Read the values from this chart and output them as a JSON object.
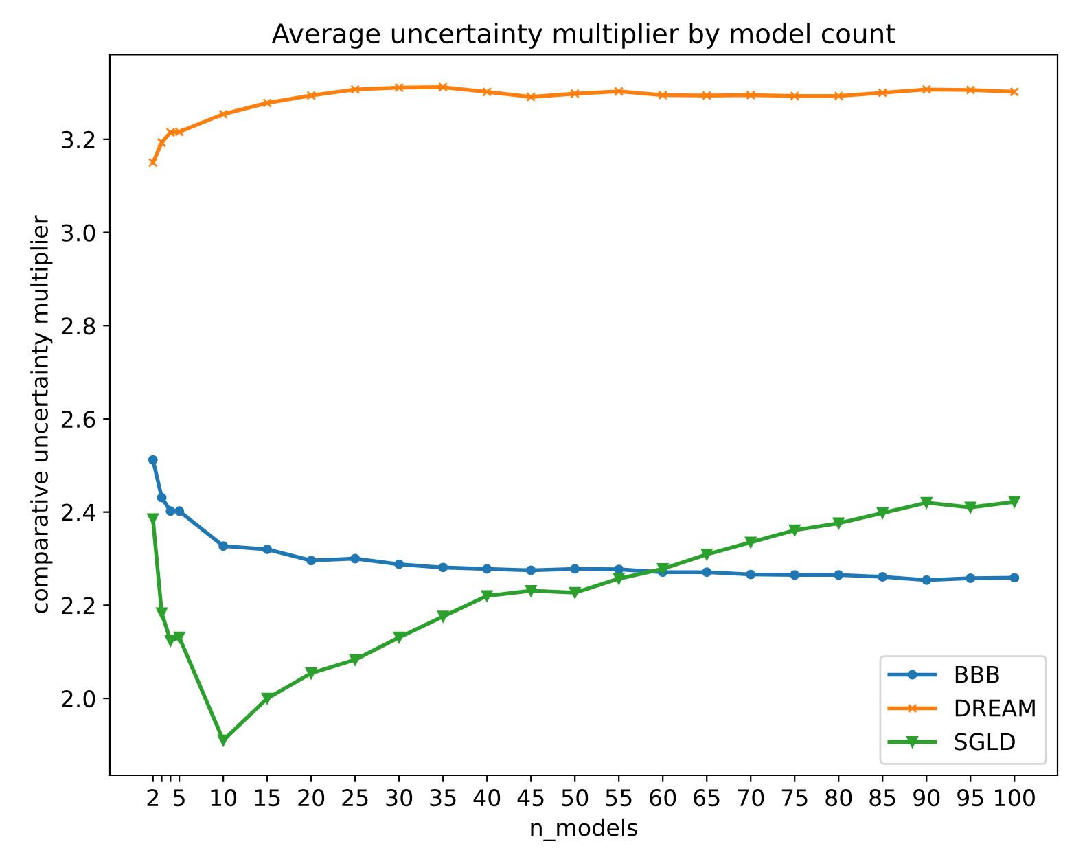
{
  "chart_data": {
    "type": "line",
    "title": "Average uncertainty multiplier by model count",
    "xlabel": "n_models",
    "ylabel": "comparative uncertainty multiplier",
    "x": [
      2,
      3,
      4,
      5,
      10,
      15,
      20,
      25,
      30,
      35,
      40,
      45,
      50,
      55,
      60,
      65,
      70,
      75,
      80,
      85,
      90,
      95,
      100
    ],
    "series": [
      {
        "name": "BBB",
        "color": "#1f77b4",
        "marker": "circle",
        "values": [
          2.512,
          2.431,
          2.402,
          2.402,
          2.327,
          2.32,
          2.296,
          2.3,
          2.288,
          2.281,
          2.278,
          2.275,
          2.278,
          2.277,
          2.271,
          2.271,
          2.266,
          2.265,
          2.265,
          2.261,
          2.254,
          2.258,
          2.259
        ]
      },
      {
        "name": "DREAM",
        "color": "#ff7f0e",
        "marker": "cross",
        "values": [
          3.15,
          3.193,
          3.215,
          3.216,
          3.254,
          3.278,
          3.294,
          3.307,
          3.311,
          3.312,
          3.302,
          3.291,
          3.298,
          3.303,
          3.295,
          3.294,
          3.295,
          3.293,
          3.293,
          3.3,
          3.307,
          3.306,
          3.302
        ]
      },
      {
        "name": "SGLD",
        "color": "#2ca02c",
        "marker": "triangle",
        "values": [
          2.385,
          2.183,
          2.124,
          2.131,
          1.91,
          2.0,
          2.054,
          2.083,
          2.131,
          2.176,
          2.22,
          2.231,
          2.227,
          2.257,
          2.278,
          2.309,
          2.335,
          2.361,
          2.376,
          2.398,
          2.42,
          2.41,
          2.422
        ]
      }
    ],
    "xlim": [
      -2.9,
      104.9
    ],
    "ylim": [
      1.835,
      3.382
    ],
    "xticks": [
      2,
      {
        "value": 3,
        "label": null
      },
      {
        "value": 4,
        "label": null
      },
      5,
      10,
      15,
      20,
      25,
      30,
      35,
      40,
      45,
      50,
      55,
      60,
      65,
      70,
      75,
      80,
      85,
      90,
      95,
      100
    ],
    "yticks": [
      {
        "value": 2,
        "label": "2.0"
      },
      2.2,
      2.4,
      2.6,
      2.8,
      {
        "value": 3,
        "label": "3.0"
      },
      3.2
    ],
    "grid": false,
    "legend": "bottom right",
    "line_style": "solid"
  }
}
